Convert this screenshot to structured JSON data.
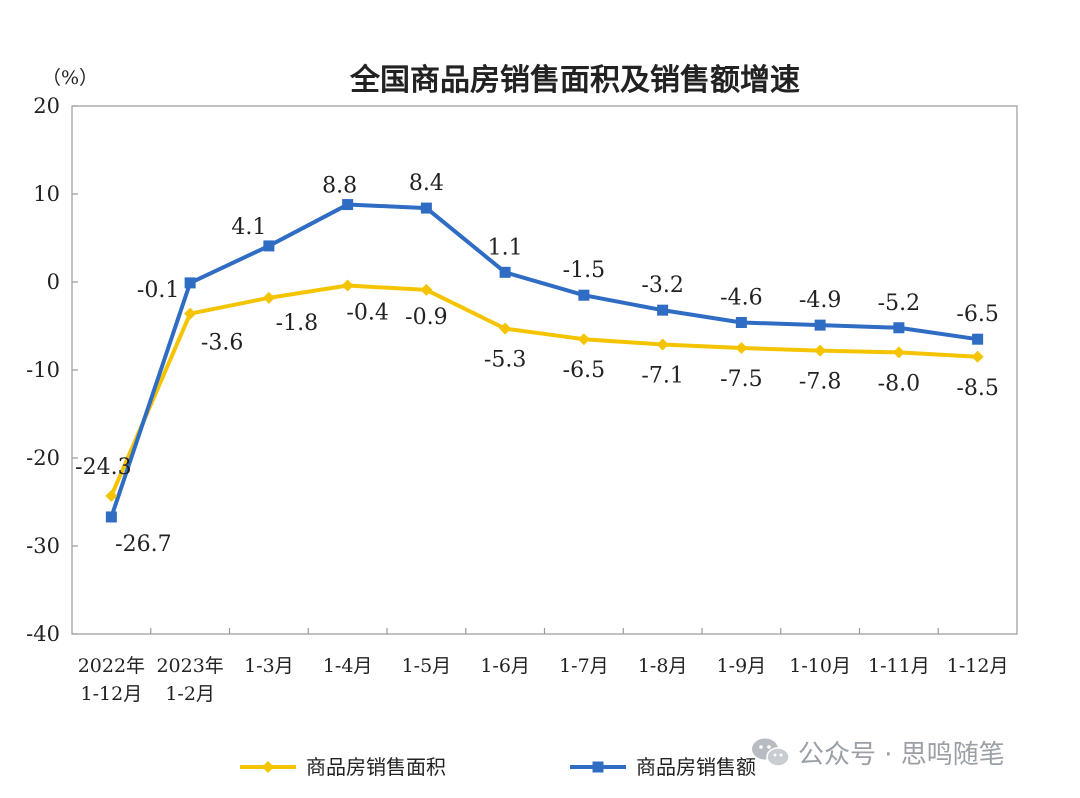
{
  "watermark": "公众号 · 思鸣随笔",
  "chart_data": {
    "type": "line",
    "title": "全国商品房销售面积及销售额增速",
    "unit": "（%）",
    "ylim": [
      -40,
      20
    ],
    "yticks": [
      20,
      10,
      0,
      -10,
      -20,
      -30,
      -40
    ],
    "categories": [
      [
        "2022年",
        "1-12月"
      ],
      [
        "2023年",
        "1-2月"
      ],
      [
        "1-3月"
      ],
      [
        "1-4月"
      ],
      [
        "1-5月"
      ],
      [
        "1-6月"
      ],
      [
        "1-7月"
      ],
      [
        "1-8月"
      ],
      [
        "1-9月"
      ],
      [
        "1-10月"
      ],
      [
        "1-11月"
      ],
      [
        "1-12月"
      ]
    ],
    "series": [
      {
        "name": "商品房销售面积",
        "color": "#f5c400",
        "marker": "diamond",
        "values": [
          -24.3,
          -3.6,
          -1.8,
          -0.4,
          -0.9,
          -5.3,
          -6.5,
          -7.1,
          -7.5,
          -7.8,
          -8.0,
          -8.5
        ],
        "labels": [
          "-24.3",
          "-3.6",
          "-1.8",
          "-0.4",
          "-0.9",
          "-5.3",
          "-6.5",
          "-7.1",
          "-7.5",
          "-7.8",
          "-8.0",
          "-8.5"
        ]
      },
      {
        "name": "商品房销售额",
        "color": "#2f6cc4",
        "marker": "square",
        "values": [
          -26.7,
          -0.1,
          4.1,
          8.8,
          8.4,
          1.1,
          -1.5,
          -3.2,
          -4.6,
          -4.9,
          -5.2,
          -6.5
        ],
        "labels": [
          "-26.7",
          "-0.1",
          "4.1",
          "8.8",
          "8.4",
          "1.1",
          "-1.5",
          "-3.2",
          "-4.6",
          "-4.9",
          "-5.2",
          "-6.5"
        ]
      }
    ],
    "legend_position": "bottom-center"
  }
}
